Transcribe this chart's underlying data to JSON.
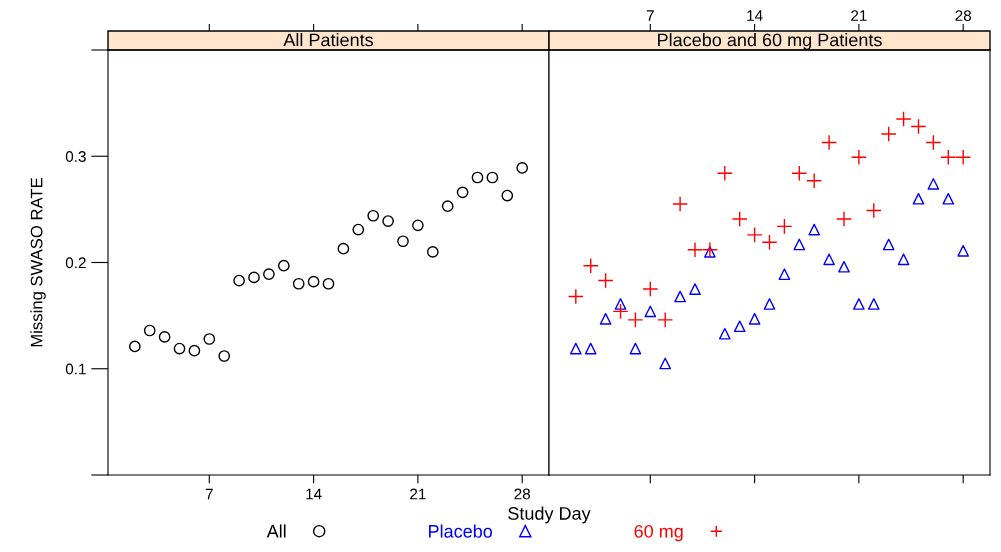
{
  "chart_data": [
    {
      "type": "scatter",
      "title": "All Patients",
      "xlabel": "Study Day",
      "ylabel": "Missing SWASO RATE",
      "marker": "circle",
      "legend": "bottom",
      "x": [
        2,
        3,
        4,
        5,
        6,
        7,
        8,
        9,
        10,
        11,
        12,
        13,
        14,
        15,
        16,
        17,
        18,
        19,
        20,
        21,
        22,
        23,
        24,
        25,
        26,
        27,
        28
      ],
      "series": [
        {
          "name": "All",
          "color": "#000000",
          "values": [
            0.121,
            0.136,
            0.13,
            0.119,
            0.117,
            0.128,
            0.112,
            0.183,
            0.186,
            0.189,
            0.197,
            0.18,
            0.182,
            0.18,
            0.213,
            0.231,
            0.244,
            0.239,
            0.22,
            0.235,
            0.21,
            0.253,
            0.266,
            0.28,
            0.28,
            0.263,
            0.289
          ]
        }
      ],
      "xlim": [
        0.2,
        29.8
      ],
      "xticks": [
        7,
        14,
        21,
        28
      ],
      "ylim": [
        0,
        0.4
      ],
      "yticks": [
        {
          "value": 0,
          "label": null
        },
        {
          "value": 0.1,
          "label": "0.1"
        },
        {
          "value": 0.2,
          "label": "0.2"
        },
        {
          "value": 0.3,
          "label": "0.3"
        },
        {
          "value": 0.4,
          "label": null
        }
      ]
    },
    {
      "type": "scatter",
      "title": "Placebo and 60 mg Patients",
      "legend": "bottom",
      "tick_labels": "x",
      "x": [
        2,
        3,
        4,
        5,
        6,
        7,
        8,
        9,
        10,
        11,
        12,
        13,
        14,
        15,
        16,
        17,
        18,
        19,
        20,
        21,
        22,
        23,
        24,
        25,
        26,
        27,
        28
      ],
      "series": [
        {
          "name": "Placebo",
          "color": "#0000ff",
          "marker": "triangle",
          "values": [
            0.119,
            0.119,
            0.147,
            0.161,
            0.119,
            0.154,
            0.105,
            0.168,
            0.175,
            0.21,
            0.133,
            0.14,
            0.147,
            0.161,
            0.189,
            0.217,
            0.231,
            0.203,
            0.196,
            0.161,
            0.161,
            0.217,
            0.203,
            0.26,
            0.274,
            0.26,
            0.211
          ]
        },
        {
          "name": "60 mg",
          "color": "#ff0000",
          "marker": "cross",
          "values": [
            0.168,
            0.197,
            0.183,
            0.154,
            0.146,
            0.175,
            0.146,
            0.255,
            0.212,
            0.212,
            0.284,
            0.241,
            0.226,
            0.219,
            0.234,
            0.284,
            0.277,
            0.313,
            0.241,
            0.299,
            0.249,
            0.321,
            0.335,
            0.328,
            0.313,
            0.299,
            0.299
          ]
        }
      ],
      "xlim": [
        0.2,
        29.8
      ],
      "xticks": [
        7,
        14,
        21,
        28
      ],
      "ylim": [
        0,
        0.4
      ]
    }
  ]
}
